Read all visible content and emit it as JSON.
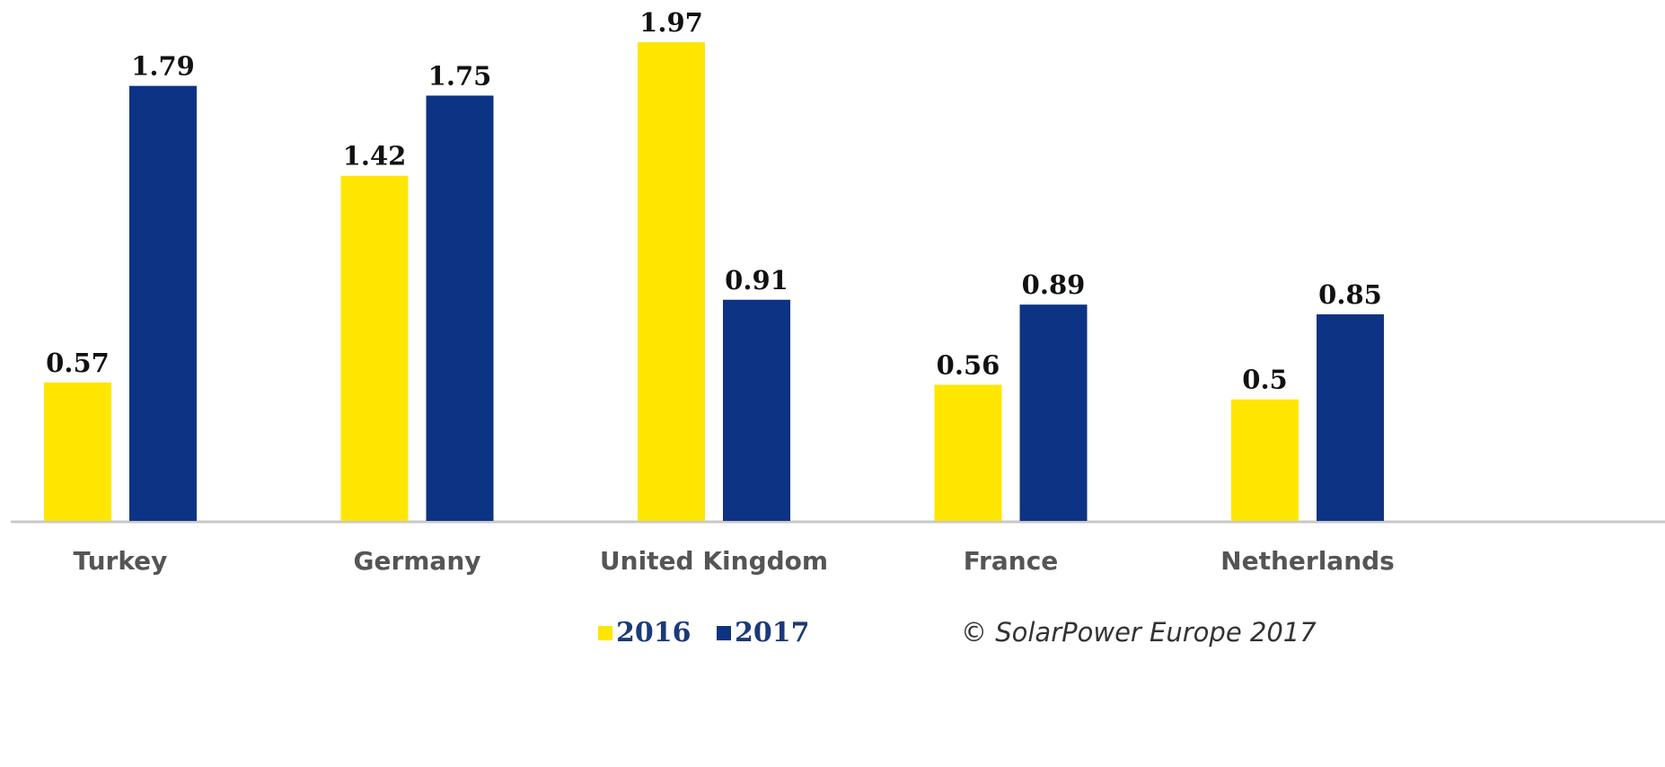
{
  "chart_data": {
    "type": "bar",
    "categories": [
      "Turkey",
      "Germany",
      "United Kingdom",
      "France",
      "Netherlands"
    ],
    "series": [
      {
        "name": "2016",
        "color": "#ffe600",
        "values": [
          0.57,
          1.42,
          1.97,
          0.56,
          0.5
        ]
      },
      {
        "name": "2017",
        "color": "#0d3384",
        "values": [
          1.79,
          1.75,
          0.91,
          0.89,
          0.85
        ]
      }
    ],
    "source": "© SolarPower Europe 2017"
  }
}
